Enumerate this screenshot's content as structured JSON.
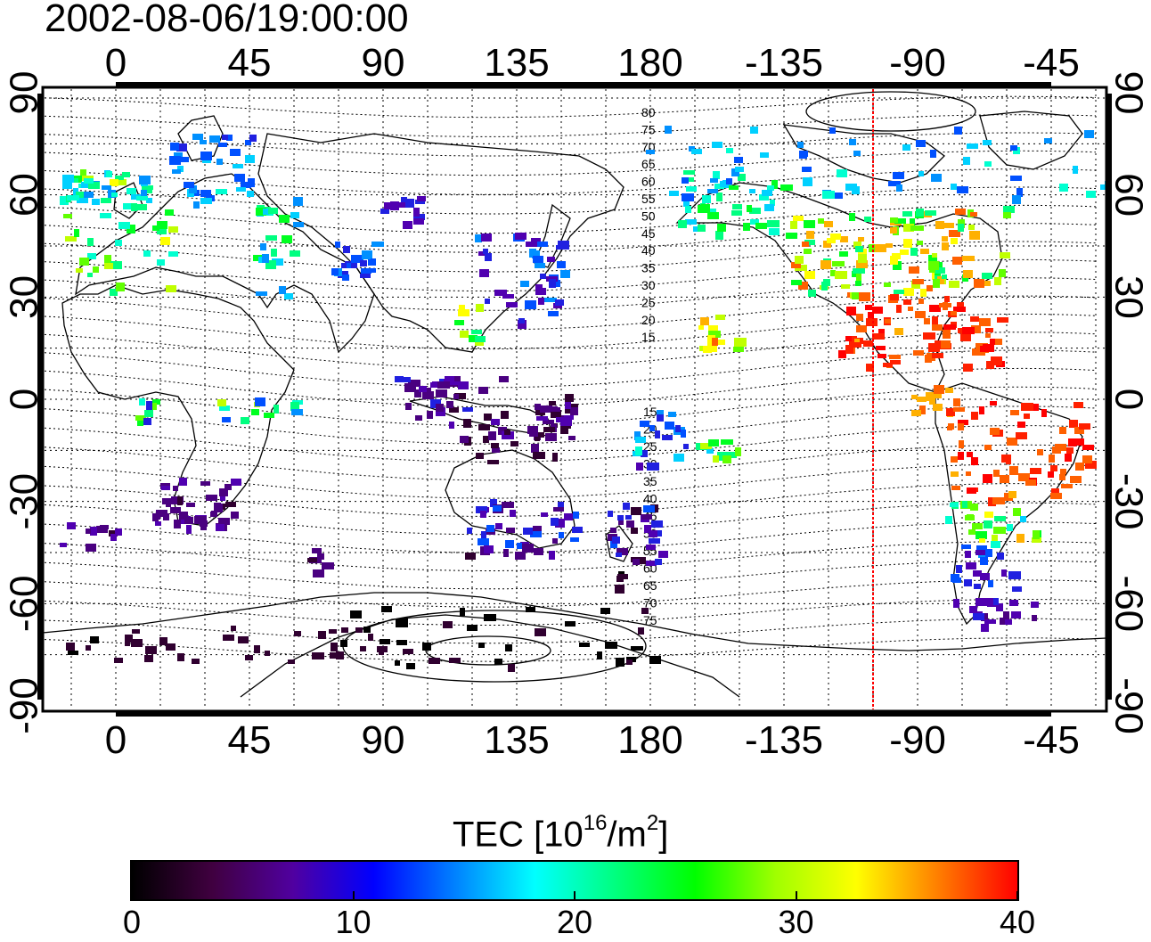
{
  "title": "2002-08-06/19:00:00",
  "map": {
    "top_lon_ticks": [
      "0",
      "45",
      "90",
      "135",
      "180",
      "-135",
      "-90",
      "-45"
    ],
    "bottom_lon_ticks": [
      "0",
      "45",
      "90",
      "135",
      "180",
      "-135",
      "-90",
      "-45"
    ],
    "lon_tick_values": [
      0,
      45,
      90,
      135,
      180,
      225,
      270,
      315
    ],
    "left_lat_ticks": [
      "90",
      "60",
      "30",
      "0",
      "-30",
      "-60",
      "-90"
    ],
    "right_lat_ticks": [
      "90",
      "60",
      "30",
      "0",
      "-30",
      "-60",
      "-90"
    ],
    "lat_tick_values": [
      90,
      60,
      30,
      0,
      -30,
      -60,
      -90
    ],
    "lon_range": [
      -25,
      333
    ],
    "lat_range": [
      -90,
      90
    ],
    "terminator_lon": -105,
    "contour_labels_north": [
      "80",
      "75",
      "70",
      "65",
      "60",
      "55",
      "50",
      "45",
      "40",
      "35",
      "30",
      "25",
      "20",
      "15"
    ],
    "contour_labels_south": [
      "15",
      "20",
      "25",
      "30",
      "35",
      "40",
      "45",
      "50",
      "55",
      "60",
      "65",
      "70",
      "75"
    ],
    "grid": true
  },
  "colorbar": {
    "title_text": "TEC  [10",
    "title_sup1": "16",
    "title_mid": "/m",
    "title_sup2": "2",
    "title_end": "]",
    "ticks": [
      "0",
      "10",
      "20",
      "30",
      "40"
    ],
    "tick_values": [
      0,
      10,
      20,
      30,
      40
    ],
    "range": [
      0,
      40
    ]
  },
  "colors": {
    "terminator": "#ff0000",
    "colormap": [
      "#000000",
      "#400040",
      "#5000a0",
      "#0000ff",
      "#0080ff",
      "#00ffff",
      "#00ff80",
      "#00ff00",
      "#a0ff00",
      "#ffff00",
      "#ff8000",
      "#ff0000"
    ]
  }
}
